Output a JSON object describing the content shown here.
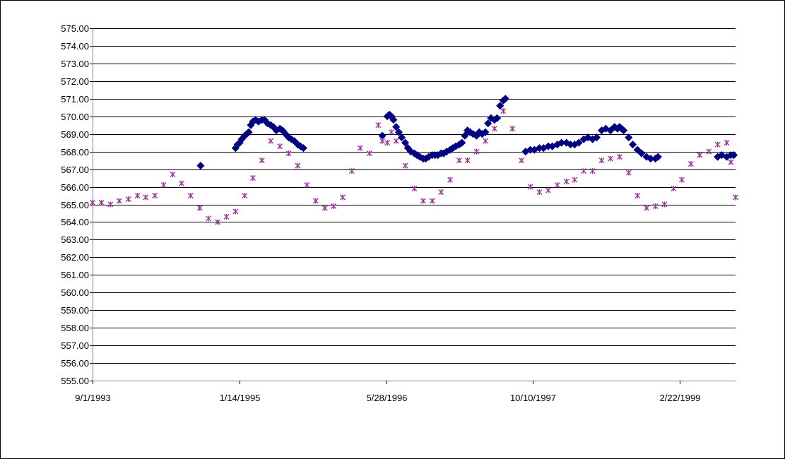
{
  "chart_data": {
    "type": "scatter",
    "title": "",
    "xlabel": "",
    "ylabel": "",
    "x_axis": {
      "type": "date",
      "min": "1993-09-01",
      "max": "1999-08-31",
      "ticks": [
        "1993-09-01",
        "1995-01-14",
        "1996-05-28",
        "1997-10-10",
        "1999-02-22"
      ],
      "tick_labels": [
        "9/1/1993",
        "1/14/1995",
        "5/28/1996",
        "10/10/1997",
        "2/22/1999"
      ]
    },
    "y_axis": {
      "min": 555,
      "max": 575,
      "step": 1,
      "tick_labels": [
        "555.00",
        "556.00",
        "557.00",
        "558.00",
        "559.00",
        "560.00",
        "561.00",
        "562.00",
        "563.00",
        "564.00",
        "565.00",
        "566.00",
        "567.00",
        "568.00",
        "569.00",
        "570.00",
        "571.00",
        "572.00",
        "573.00",
        "574.00",
        "575.00"
      ]
    },
    "grid": true,
    "legend": "none",
    "series": [
      {
        "marker": "diamond",
        "color": "#000080",
        "points": [
          [
            "1994-09-04",
            567.2
          ],
          [
            "1995-01-01",
            568.2
          ],
          [
            "1995-01-08",
            568.4
          ],
          [
            "1995-01-15",
            568.5
          ],
          [
            "1995-01-22",
            568.7
          ],
          [
            "1995-02-01",
            568.9
          ],
          [
            "1995-02-08",
            569.0
          ],
          [
            "1995-02-15",
            569.1
          ],
          [
            "1995-02-22",
            569.5
          ],
          [
            "1995-03-01",
            569.7
          ],
          [
            "1995-03-10",
            569.8
          ],
          [
            "1995-03-20",
            569.7
          ],
          [
            "1995-04-01",
            569.8
          ],
          [
            "1995-04-10",
            569.8
          ],
          [
            "1995-04-20",
            569.6
          ],
          [
            "1995-05-01",
            569.5
          ],
          [
            "1995-05-10",
            569.4
          ],
          [
            "1995-05-20",
            569.2
          ],
          [
            "1995-06-01",
            569.3
          ],
          [
            "1995-06-10",
            569.2
          ],
          [
            "1995-06-20",
            569.0
          ],
          [
            "1995-07-01",
            568.8
          ],
          [
            "1995-07-10",
            568.7
          ],
          [
            "1995-07-20",
            568.6
          ],
          [
            "1995-08-01",
            568.4
          ],
          [
            "1995-08-10",
            568.3
          ],
          [
            "1995-08-20",
            568.2
          ],
          [
            "1996-05-15",
            568.9
          ],
          [
            "1996-06-01",
            570.0
          ],
          [
            "1996-06-08",
            570.1
          ],
          [
            "1996-06-15",
            570.0
          ],
          [
            "1996-06-22",
            569.8
          ],
          [
            "1996-07-01",
            569.4
          ],
          [
            "1996-07-10",
            569.1
          ],
          [
            "1996-07-20",
            568.8
          ],
          [
            "1996-08-01",
            568.5
          ],
          [
            "1996-08-10",
            568.2
          ],
          [
            "1996-08-20",
            568.0
          ],
          [
            "1996-09-01",
            567.9
          ],
          [
            "1996-09-10",
            567.8
          ],
          [
            "1996-09-20",
            567.7
          ],
          [
            "1996-10-01",
            567.6
          ],
          [
            "1996-10-10",
            567.6
          ],
          [
            "1996-10-20",
            567.7
          ],
          [
            "1996-11-01",
            567.8
          ],
          [
            "1996-11-10",
            567.8
          ],
          [
            "1996-11-20",
            567.8
          ],
          [
            "1996-12-01",
            567.9
          ],
          [
            "1996-12-10",
            567.9
          ],
          [
            "1996-12-20",
            568.0
          ],
          [
            "1997-01-01",
            568.1
          ],
          [
            "1997-01-10",
            568.2
          ],
          [
            "1997-01-20",
            568.3
          ],
          [
            "1997-02-01",
            568.4
          ],
          [
            "1997-02-10",
            568.5
          ],
          [
            "1997-02-20",
            568.9
          ],
          [
            "1997-03-01",
            569.2
          ],
          [
            "1997-03-10",
            569.1
          ],
          [
            "1997-03-20",
            569.0
          ],
          [
            "1997-04-01",
            568.9
          ],
          [
            "1997-04-10",
            569.1
          ],
          [
            "1997-04-20",
            569.0
          ],
          [
            "1997-05-01",
            569.1
          ],
          [
            "1997-05-10",
            569.6
          ],
          [
            "1997-05-20",
            569.9
          ],
          [
            "1997-06-01",
            569.8
          ],
          [
            "1997-06-10",
            569.9
          ],
          [
            "1997-06-20",
            570.6
          ],
          [
            "1997-07-01",
            570.9
          ],
          [
            "1997-07-08",
            571.0
          ],
          [
            "1997-09-15",
            568.0
          ],
          [
            "1997-10-01",
            568.1
          ],
          [
            "1997-10-15",
            568.1
          ],
          [
            "1997-11-01",
            568.2
          ],
          [
            "1997-11-15",
            568.2
          ],
          [
            "1997-12-01",
            568.3
          ],
          [
            "1997-12-15",
            568.3
          ],
          [
            "1998-01-01",
            568.4
          ],
          [
            "1998-01-15",
            568.5
          ],
          [
            "1998-02-01",
            568.5
          ],
          [
            "1998-02-15",
            568.4
          ],
          [
            "1998-03-01",
            568.4
          ],
          [
            "1998-03-15",
            568.5
          ],
          [
            "1998-04-01",
            568.7
          ],
          [
            "1998-04-15",
            568.8
          ],
          [
            "1998-05-01",
            568.7
          ],
          [
            "1998-05-15",
            568.8
          ],
          [
            "1998-06-01",
            569.2
          ],
          [
            "1998-06-15",
            569.3
          ],
          [
            "1998-07-01",
            569.2
          ],
          [
            "1998-07-15",
            569.4
          ],
          [
            "1998-07-25",
            569.3
          ],
          [
            "1998-08-01",
            569.4
          ],
          [
            "1998-08-08",
            569.3
          ],
          [
            "1998-08-15",
            569.2
          ],
          [
            "1998-09-01",
            568.8
          ],
          [
            "1998-09-15",
            568.4
          ],
          [
            "1998-10-01",
            568.1
          ],
          [
            "1998-10-15",
            567.9
          ],
          [
            "1998-11-01",
            567.7
          ],
          [
            "1998-11-15",
            567.6
          ],
          [
            "1998-12-01",
            567.6
          ],
          [
            "1998-12-10",
            567.7
          ],
          [
            "1999-07-01",
            567.7
          ],
          [
            "1999-07-15",
            567.8
          ],
          [
            "1999-08-01",
            567.7
          ],
          [
            "1999-08-15",
            567.8
          ],
          [
            "1999-08-25",
            567.8
          ]
        ]
      },
      {
        "marker": "star",
        "color": "#993399",
        "points": [
          [
            "1993-09-01",
            565.1
          ],
          [
            "1993-10-01",
            565.1
          ],
          [
            "1993-11-01",
            565.0
          ],
          [
            "1993-12-01",
            565.2
          ],
          [
            "1994-01-01",
            565.3
          ],
          [
            "1994-02-01",
            565.5
          ],
          [
            "1994-03-01",
            565.4
          ],
          [
            "1994-04-01",
            565.5
          ],
          [
            "1994-05-01",
            566.1
          ],
          [
            "1994-06-01",
            566.7
          ],
          [
            "1994-07-01",
            566.2
          ],
          [
            "1994-08-01",
            565.5
          ],
          [
            "1994-09-01",
            564.8
          ],
          [
            "1994-10-01",
            564.2
          ],
          [
            "1994-11-01",
            564.0
          ],
          [
            "1994-12-01",
            564.3
          ],
          [
            "1995-01-01",
            564.6
          ],
          [
            "1995-02-01",
            565.5
          ],
          [
            "1995-03-01",
            566.5
          ],
          [
            "1995-04-01",
            567.5
          ],
          [
            "1995-05-01",
            568.6
          ],
          [
            "1995-06-01",
            568.3
          ],
          [
            "1995-07-01",
            567.9
          ],
          [
            "1995-08-01",
            567.2
          ],
          [
            "1995-09-01",
            566.1
          ],
          [
            "1995-10-01",
            565.2
          ],
          [
            "1995-11-01",
            564.8
          ],
          [
            "1995-12-01",
            564.9
          ],
          [
            "1996-01-01",
            565.4
          ],
          [
            "1996-02-01",
            566.9
          ],
          [
            "1996-03-01",
            568.2
          ],
          [
            "1996-04-01",
            567.9
          ],
          [
            "1996-05-01",
            569.5
          ],
          [
            "1996-05-15",
            568.6
          ],
          [
            "1996-06-01",
            568.5
          ],
          [
            "1996-06-15",
            569.1
          ],
          [
            "1996-07-01",
            568.6
          ],
          [
            "1996-08-01",
            567.2
          ],
          [
            "1996-09-01",
            565.9
          ],
          [
            "1996-10-01",
            565.2
          ],
          [
            "1996-11-01",
            565.2
          ],
          [
            "1996-12-01",
            565.7
          ],
          [
            "1997-01-01",
            566.4
          ],
          [
            "1997-02-01",
            567.5
          ],
          [
            "1997-03-01",
            567.5
          ],
          [
            "1997-04-01",
            568.0
          ],
          [
            "1997-05-01",
            568.6
          ],
          [
            "1997-06-01",
            569.3
          ],
          [
            "1997-07-01",
            570.3
          ],
          [
            "1997-08-01",
            569.3
          ],
          [
            "1997-09-01",
            567.5
          ],
          [
            "1997-10-01",
            566.0
          ],
          [
            "1997-11-01",
            565.7
          ],
          [
            "1997-12-01",
            565.8
          ],
          [
            "1998-01-01",
            566.1
          ],
          [
            "1998-02-01",
            566.3
          ],
          [
            "1998-03-01",
            566.4
          ],
          [
            "1998-04-01",
            566.9
          ],
          [
            "1998-05-01",
            566.9
          ],
          [
            "1998-06-01",
            567.5
          ],
          [
            "1998-07-01",
            567.6
          ],
          [
            "1998-08-01",
            567.7
          ],
          [
            "1998-09-01",
            566.8
          ],
          [
            "1998-10-01",
            565.5
          ],
          [
            "1998-11-01",
            564.8
          ],
          [
            "1998-12-01",
            564.9
          ],
          [
            "1999-01-01",
            565.0
          ],
          [
            "1999-02-01",
            565.9
          ],
          [
            "1999-03-01",
            566.4
          ],
          [
            "1999-04-01",
            567.3
          ],
          [
            "1999-05-01",
            567.8
          ],
          [
            "1999-06-01",
            568.0
          ],
          [
            "1999-07-01",
            568.4
          ],
          [
            "1999-08-01",
            568.5
          ],
          [
            "1999-08-15",
            567.4
          ],
          [
            "1999-08-31",
            565.4
          ]
        ]
      }
    ]
  }
}
